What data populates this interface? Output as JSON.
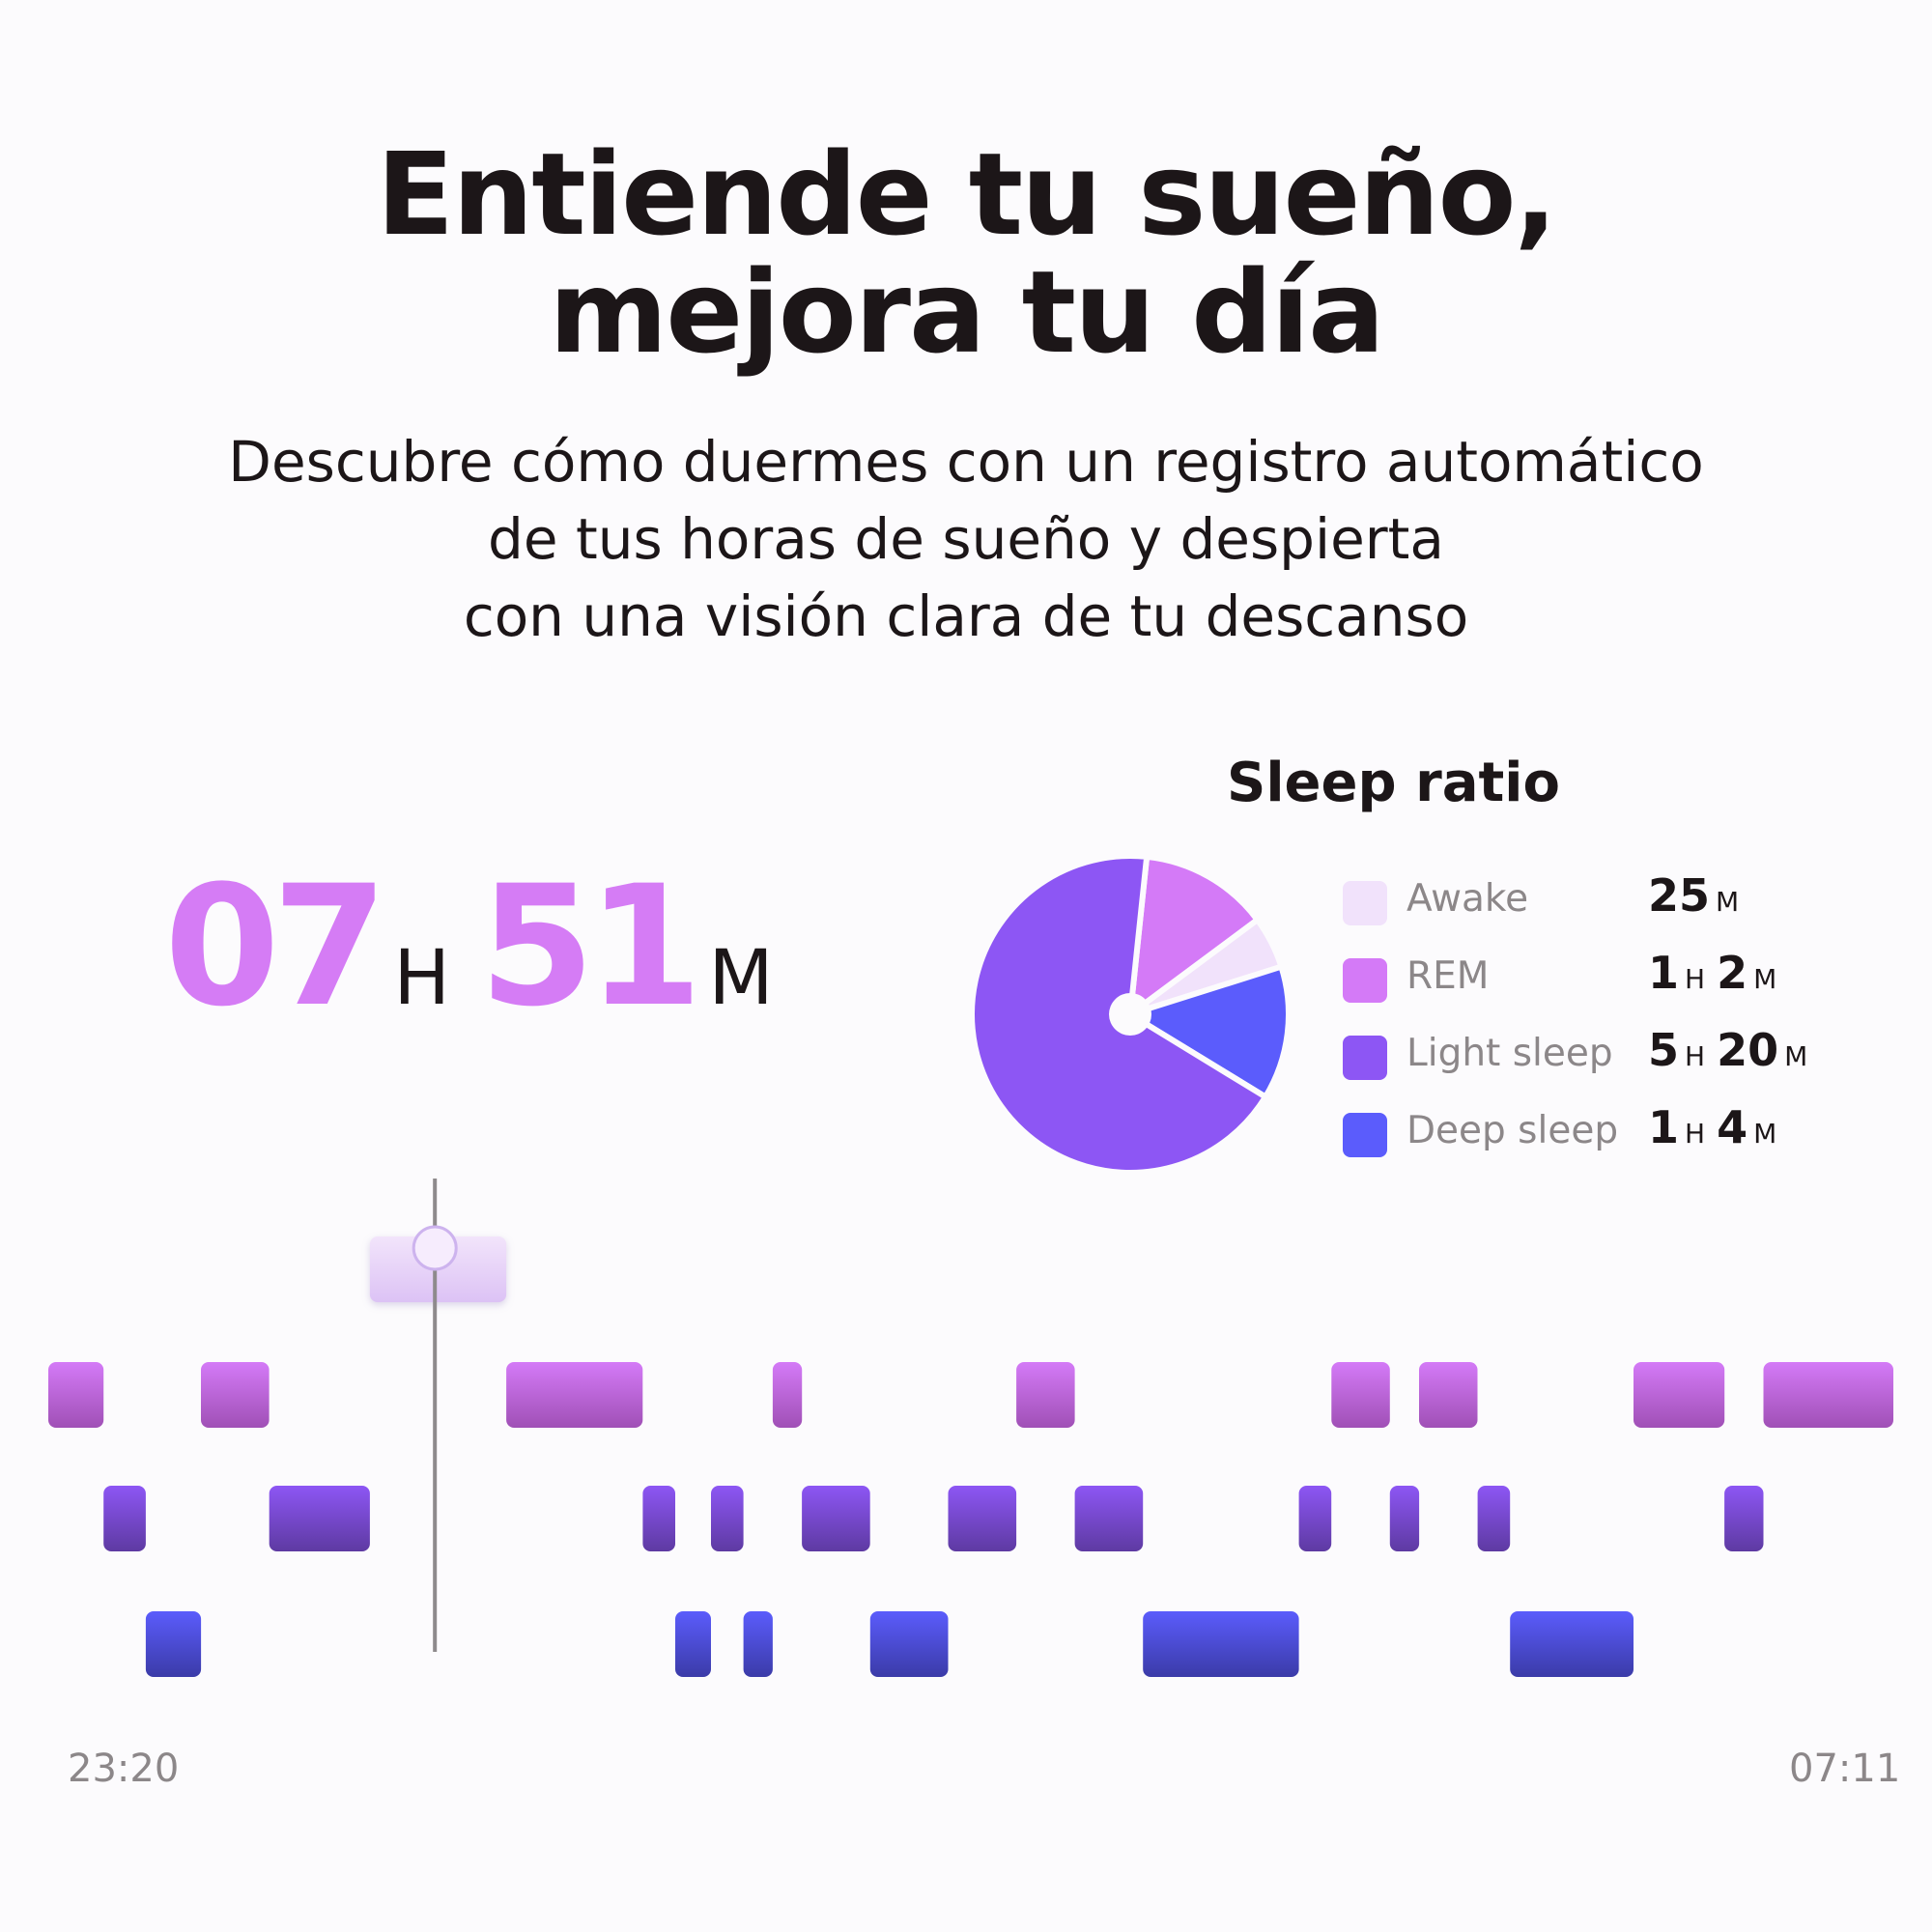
{
  "headline": {
    "line1": "Entiende tu sueño,",
    "line2": "mejora tu día"
  },
  "subtitle": {
    "line1": "Descubre cómo duermes con un registro automático",
    "line2": "de tus horas de sueño y despierta",
    "line3": "con una visión clara de tu descanso"
  },
  "total": {
    "hours": "07",
    "hours_unit": "H",
    "minutes": "51",
    "minutes_unit": "M"
  },
  "colors": {
    "awake": "#f1e2fb",
    "rem": "#d47af7",
    "light": "#8d56f4",
    "deep": "#5b5cfc",
    "accent": "#d57cf5",
    "text": "#1c1618",
    "muted": "#8c8789"
  },
  "chart_data": [
    {
      "type": "pie",
      "title": "Sleep ratio",
      "series": [
        {
          "key": "awake",
          "name": "Awake",
          "minutes": 25,
          "display": [
            {
              "v": "25",
              "u": "M"
            }
          ]
        },
        {
          "key": "rem",
          "name": "REM",
          "minutes": 62,
          "display": [
            {
              "v": "1",
              "u": "H"
            },
            {
              "v": "2",
              "u": "M"
            }
          ]
        },
        {
          "key": "light",
          "name": "Light sleep",
          "minutes": 320,
          "display": [
            {
              "v": "5",
              "u": "H"
            },
            {
              "v": "20",
              "u": "M"
            }
          ]
        },
        {
          "key": "deep",
          "name": "Deep sleep",
          "minutes": 64,
          "display": [
            {
              "v": "1",
              "u": "H"
            },
            {
              "v": "4",
              "u": "M"
            }
          ]
        }
      ],
      "legend": "right"
    },
    {
      "type": "hypnogram",
      "x_start": "23:20",
      "x_end": "07:11",
      "stages": [
        "awake",
        "rem",
        "light",
        "deep"
      ],
      "segments": [
        {
          "stage": "rem",
          "start": 0,
          "end": 1.7
        },
        {
          "stage": "light",
          "start": 1.7,
          "end": 3.0
        },
        {
          "stage": "deep",
          "start": 3.0,
          "end": 4.7
        },
        {
          "stage": "rem",
          "start": 4.7,
          "end": 6.8
        },
        {
          "stage": "light",
          "start": 6.8,
          "end": 9.9
        },
        {
          "stage": "awake",
          "start": 9.9,
          "end": 14.1
        },
        {
          "stage": "rem",
          "start": 14.1,
          "end": 18.3
        },
        {
          "stage": "light",
          "start": 18.3,
          "end": 19.3
        },
        {
          "stage": "deep",
          "start": 19.3,
          "end": 20.4
        },
        {
          "stage": "light",
          "start": 20.4,
          "end": 21.4
        },
        {
          "stage": "deep",
          "start": 21.4,
          "end": 22.3
        },
        {
          "stage": "rem",
          "start": 22.3,
          "end": 23.2
        },
        {
          "stage": "light",
          "start": 23.2,
          "end": 25.3
        },
        {
          "stage": "deep",
          "start": 25.3,
          "end": 27.7
        },
        {
          "stage": "light",
          "start": 27.7,
          "end": 29.8
        },
        {
          "stage": "rem",
          "start": 29.8,
          "end": 31.6
        },
        {
          "stage": "light",
          "start": 31.6,
          "end": 33.7
        },
        {
          "stage": "deep",
          "start": 33.7,
          "end": 38.5
        },
        {
          "stage": "light",
          "start": 38.5,
          "end": 39.5
        },
        {
          "stage": "rem",
          "start": 39.5,
          "end": 41.3
        },
        {
          "stage": "light",
          "start": 41.3,
          "end": 42.2
        },
        {
          "stage": "rem",
          "start": 42.2,
          "end": 44.0
        },
        {
          "stage": "light",
          "start": 44.0,
          "end": 45.0
        },
        {
          "stage": "deep",
          "start": 45.0,
          "end": 48.8
        },
        {
          "stage": "rem",
          "start": 48.8,
          "end": 51.6
        },
        {
          "stage": "light",
          "start": 51.6,
          "end": 52.8
        },
        {
          "stage": "rem",
          "start": 52.8,
          "end": 56.8
        }
      ],
      "cursor_at": 11.9,
      "x_total": 56.8
    }
  ]
}
